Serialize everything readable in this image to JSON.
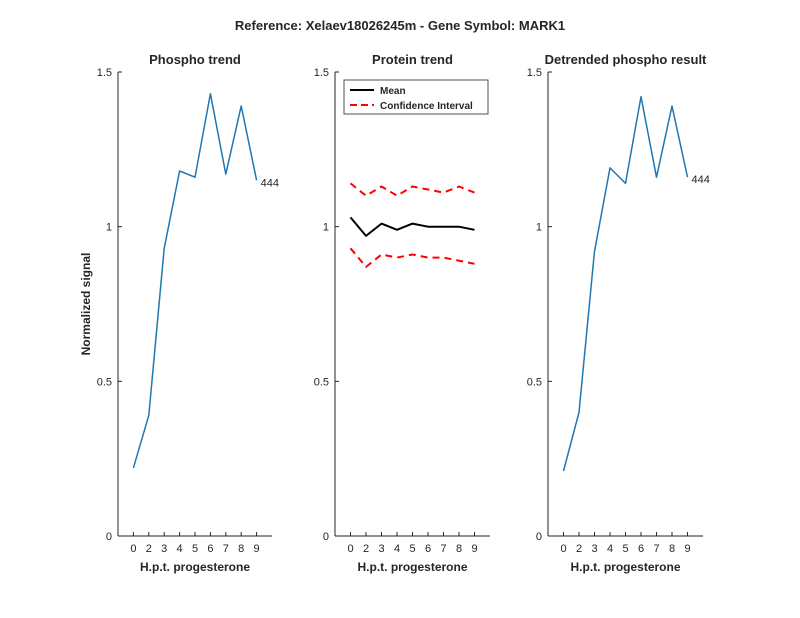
{
  "figure": {
    "title": "Reference:  Xelaev18026245m - Gene Symbol:  MARK1"
  },
  "chart_data": [
    {
      "type": "line",
      "title": "Phospho trend",
      "xlabel": "H.p.t. progesterone",
      "ylabel": "Normalized signal",
      "categories": [
        "0",
        "2",
        "3",
        "4",
        "5",
        "6",
        "7",
        "8",
        "9"
      ],
      "ylim": [
        0,
        1.5
      ],
      "yticks": [
        "0",
        "0.5",
        "1",
        "1.5"
      ],
      "series": [
        {
          "values": [
            0.22,
            0.39,
            0.93,
            1.18,
            1.16,
            1.43,
            1.17,
            1.39,
            1.15
          ],
          "color": "#1f77b4",
          "style": "solid",
          "end_label": "444"
        }
      ],
      "grid": false
    },
    {
      "type": "line",
      "title": "Protein trend",
      "xlabel": "H.p.t. progesterone",
      "ylabel": "",
      "categories": [
        "0",
        "2",
        "3",
        "4",
        "5",
        "6",
        "7",
        "8",
        "9"
      ],
      "ylim": [
        0,
        1.5
      ],
      "yticks": [
        "0",
        "0.5",
        "1",
        "1.5"
      ],
      "series": [
        {
          "name": "Mean",
          "values": [
            1.03,
            0.97,
            1.01,
            0.99,
            1.01,
            1.0,
            1.0,
            1.0,
            0.99
          ],
          "color": "#000000",
          "style": "solid"
        },
        {
          "name": "Confidence Interval",
          "values": [
            1.14,
            1.1,
            1.13,
            1.1,
            1.13,
            1.12,
            1.11,
            1.13,
            1.11
          ],
          "color": "#ff0000",
          "style": "dashed"
        },
        {
          "values": [
            0.93,
            0.87,
            0.91,
            0.9,
            0.91,
            0.9,
            0.9,
            0.89,
            0.88
          ],
          "color": "#ff0000",
          "style": "dashed"
        }
      ],
      "legend": {
        "placement": "top-right",
        "entries": [
          "Mean",
          "Confidence Interval"
        ]
      },
      "grid": false
    },
    {
      "type": "line",
      "title": "Detrended phospho result",
      "xlabel": "H.p.t. progesterone",
      "ylabel": "",
      "categories": [
        "0",
        "2",
        "3",
        "4",
        "5",
        "6",
        "7",
        "8",
        "9"
      ],
      "ylim": [
        0,
        1.5
      ],
      "yticks": [
        "0",
        "0.5",
        "1",
        "1.5"
      ],
      "series": [
        {
          "values": [
            0.21,
            0.4,
            0.92,
            1.19,
            1.14,
            1.42,
            1.16,
            1.39,
            1.16
          ],
          "color": "#1f77b4",
          "style": "solid",
          "end_label": "444"
        }
      ],
      "grid": false
    }
  ]
}
